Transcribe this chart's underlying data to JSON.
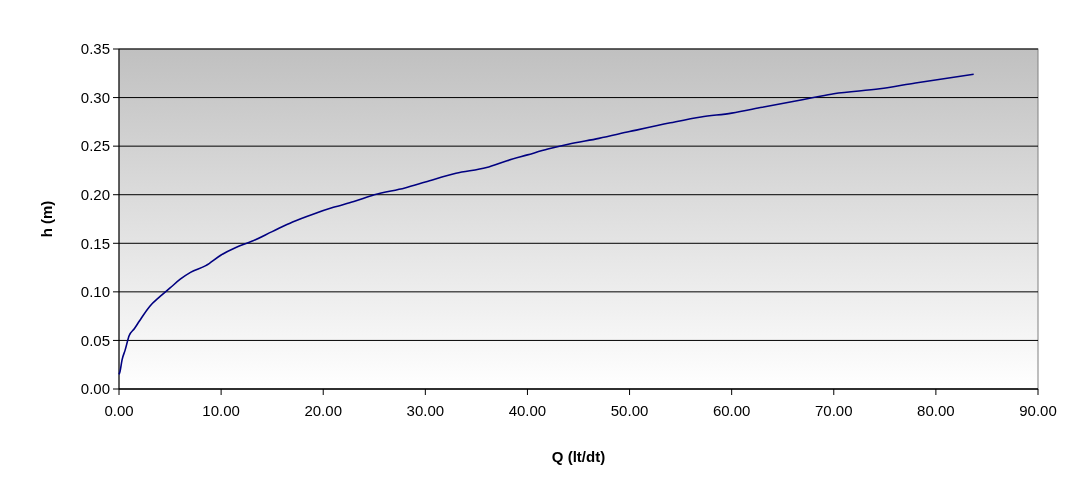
{
  "chart_data": {
    "type": "line",
    "xlabel": "Q (lt/dt)",
    "ylabel": "h (m)",
    "xlim": [
      0,
      90
    ],
    "xticks": [
      {
        "value": 0,
        "label": "0.00"
      },
      {
        "value": 10,
        "label": "10.00"
      },
      {
        "value": 20,
        "label": "20.00"
      },
      {
        "value": 30,
        "label": "30.00"
      },
      {
        "value": 40,
        "label": "40.00"
      },
      {
        "value": 50,
        "label": "50.00"
      },
      {
        "value": 60,
        "label": "60.00"
      },
      {
        "value": 70,
        "label": "70.00"
      },
      {
        "value": 80,
        "label": "80.00"
      },
      {
        "value": 90,
        "label": "90.00"
      }
    ],
    "ylim": [
      0,
      0.35
    ],
    "yticks": [
      {
        "value": 0,
        "label": "0.00"
      },
      0.05,
      {
        "value": 0.1,
        "label": "0.10"
      },
      0.15,
      {
        "value": 0.2,
        "label": "0.20"
      },
      0.25,
      {
        "value": 0.3,
        "label": "0.30"
      },
      0.35
    ],
    "grid": "y",
    "marker": "none",
    "line_style": "solid",
    "series": [
      {
        "color": "#000080",
        "x": [
          0,
          0.1,
          0.3,
          0.6,
          1.0,
          1.5,
          2.0,
          3.0,
          4.0,
          5.0,
          6.0,
          7.0,
          8.5,
          10.0,
          11.5,
          13.0,
          15.0,
          17.0,
          19.0,
          21.0,
          23.0,
          25.0,
          28.0,
          30.0,
          33.0,
          36.0,
          38.0,
          40.0,
          42.0,
          44.0,
          47.0,
          50.0,
          54.0,
          57.0,
          60.0,
          63.0,
          66.0,
          68.0,
          70.0,
          74.5,
          78.0,
          83.7
        ],
        "values": [
          0.015,
          0.018,
          0.03,
          0.04,
          0.055,
          0.062,
          0.07,
          0.085,
          0.095,
          0.104,
          0.113,
          0.12,
          0.127,
          0.138,
          0.146,
          0.152,
          0.162,
          0.172,
          0.18,
          0.187,
          0.193,
          0.2,
          0.207,
          0.213,
          0.222,
          0.228,
          0.235,
          0.241,
          0.247,
          0.252,
          0.258,
          0.265,
          0.274,
          0.28,
          0.284,
          0.29,
          0.296,
          0.3,
          0.304,
          0.309,
          0.315,
          0.324
        ]
      }
    ]
  }
}
